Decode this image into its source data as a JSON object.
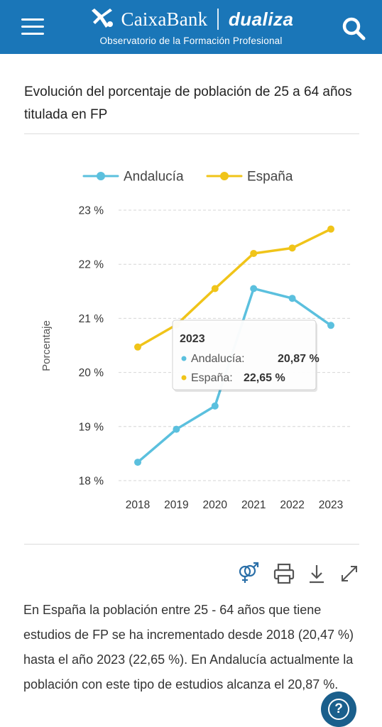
{
  "header": {
    "brand_name": "CaixaBank",
    "brand_product": "dualiza",
    "subtitle": "Observatorio de la Formación Profesional",
    "menu_icon": "hamburger-menu-icon",
    "search_icon": "search-icon",
    "background_color": "#1a76b8"
  },
  "card": {
    "title": "Evolución del porcentaje de población de 25 a 64 años titulada en FP"
  },
  "chart_data": {
    "type": "line",
    "title": "",
    "xlabel": "",
    "ylabel": "Porcentaje",
    "categories": [
      "2018",
      "2019",
      "2020",
      "2021",
      "2022",
      "2023"
    ],
    "ylim": [
      18,
      23
    ],
    "yticks": [
      "18 %",
      "19 %",
      "20 %",
      "21 %",
      "22 %",
      "23 %"
    ],
    "grid": true,
    "legend_position": "top",
    "series": [
      {
        "name": "Andalucía",
        "color": "#5bc0de",
        "values": [
          18.34,
          18.95,
          19.38,
          21.55,
          21.37,
          20.87
        ]
      },
      {
        "name": "España",
        "color": "#f0c419",
        "values": [
          20.47,
          20.88,
          21.55,
          22.2,
          22.3,
          22.65
        ]
      }
    ],
    "tooltip": {
      "title": "2023",
      "rows": [
        {
          "label": "Andalucía:",
          "value": "20,87 %",
          "color": "#5bc0de"
        },
        {
          "label": "España:",
          "value": "22,65 %",
          "color": "#f0c419"
        }
      ]
    }
  },
  "toolbar": {
    "icons": [
      "gender-icon",
      "print-icon",
      "download-icon",
      "fullscreen-icon"
    ],
    "color": "#2a6fa8"
  },
  "description": "En España la población entre 25 - 64 años que tiene estudios de FP se ha incrementado desde 2018 (20,47 %) hasta el año 2023 (22,65 %). En Andalucía actualmente la población con este tipo de estudios alcanza el 20,87 %.",
  "help": {
    "label": "?",
    "icon": "help-icon"
  }
}
